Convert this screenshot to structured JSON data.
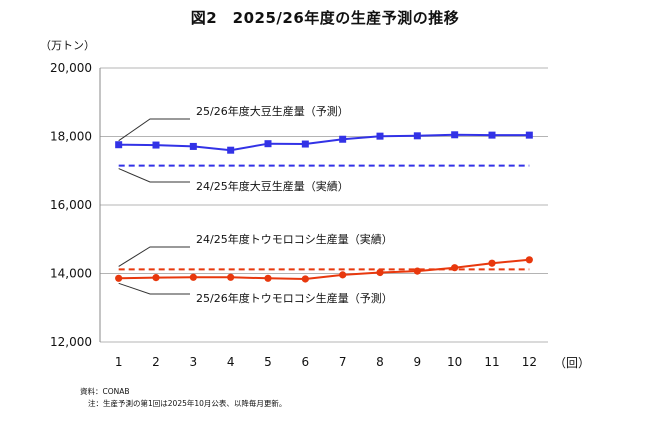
{
  "chart_data": {
    "type": "line",
    "title": "図2　2025/26年度の生産予測の推移",
    "ylabel": "（万トン）",
    "xlabel_unit": "（回）",
    "x": [
      1,
      2,
      3,
      4,
      5,
      6,
      7,
      8,
      9,
      10,
      11,
      12
    ],
    "ylim": [
      12000,
      20000
    ],
    "yticks": [
      12000,
      14000,
      16000,
      18000,
      20000
    ],
    "ytick_labels": [
      "12,000",
      "14,000",
      "16,000",
      "18,000",
      "20,000"
    ],
    "grid": "horizontal",
    "series": [
      {
        "name": "25/26年度大豆生産量（予測）",
        "style": "line-square",
        "color": "#3232e6",
        "values": [
          17760,
          17750,
          17710,
          17600,
          17790,
          17780,
          17920,
          18010,
          18020,
          18050,
          18040,
          18040
        ]
      },
      {
        "name": "24/25年度大豆生産量（実績）",
        "style": "dashed",
        "color": "#3232e6",
        "values": [
          17150,
          17150,
          17150,
          17150,
          17150,
          17150,
          17150,
          17150,
          17150,
          17150,
          17150,
          17150
        ]
      },
      {
        "name": "24/25年度トウモロコシ生産量（実績）",
        "style": "dashed",
        "color": "#e8380d",
        "values": [
          14120,
          14120,
          14120,
          14120,
          14120,
          14120,
          14120,
          14120,
          14120,
          14120,
          14120,
          14120
        ]
      },
      {
        "name": "25/26年度トウモロコシ生産量（予測）",
        "style": "line-circle",
        "color": "#e8380d",
        "values": [
          13860,
          13880,
          13890,
          13890,
          13860,
          13840,
          13960,
          14030,
          14070,
          14170,
          14300,
          14400
        ]
      }
    ],
    "annotations": [
      {
        "text": "25/26年度大豆生産量（予測）",
        "series": 0
      },
      {
        "text": "24/25年度大豆生産量（実績）",
        "series": 1
      },
      {
        "text": "24/25年度トウモロコシ生産量（実績）",
        "series": 2
      },
      {
        "text": "25/26年度トウモロコシ生産量（予測）",
        "series": 3
      }
    ]
  },
  "notes": {
    "source": "資料：CONAB",
    "note": "注：生産予測の第1回は2025年10月公表、以降毎月更新。"
  }
}
